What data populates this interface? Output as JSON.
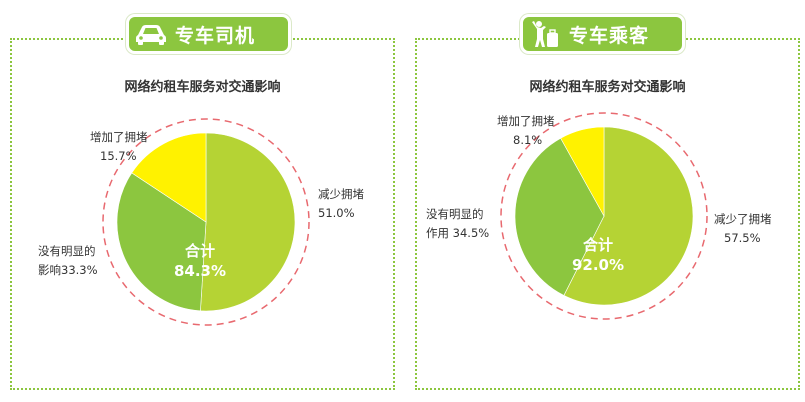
{
  "tabs": [
    {
      "label": "专车司机",
      "icon": "car-icon"
    },
    {
      "label": "专车乘客",
      "icon": "passenger-luggage-icon"
    }
  ],
  "colors": {
    "accent": "#8cc63f",
    "reduce": "#b5d334",
    "no_effect": "#8cc63f",
    "increase": "#fff200",
    "dashed_ring": "#e8696f"
  },
  "chart_data": [
    {
      "type": "pie",
      "title": "网络约租车服务对交通影响",
      "slices": [
        {
          "label": "减少拥堵",
          "value": 51.0,
          "text": "51.0%"
        },
        {
          "label": "没有明显的影响",
          "value": 33.3,
          "text": "33.3%"
        },
        {
          "label": "增加了拥堵",
          "value": 15.7,
          "text": "15.7%"
        }
      ],
      "center_label": "合计",
      "center_value": "84.3%",
      "annotation_labels": {
        "reduce": [
          "减少拥堵",
          "51.0%"
        ],
        "no_effect": [
          "没有明显的",
          "影响33.3%"
        ],
        "increase": [
          "增加了拥堵",
          "15.7%"
        ]
      }
    },
    {
      "type": "pie",
      "title": "网络约租车服务对交通影响",
      "slices": [
        {
          "label": "减少了拥堵",
          "value": 57.5,
          "text": "57.5%"
        },
        {
          "label": "没有明显的作用",
          "value": 34.5,
          "text": "34.5%"
        },
        {
          "label": "增加了拥堵",
          "value": 8.1,
          "text": "8.1%"
        }
      ],
      "center_label": "合计",
      "center_value": "92.0%",
      "annotation_labels": {
        "reduce": [
          "减少了拥堵",
          "57.5%"
        ],
        "no_effect": [
          "没有明显的",
          "作用 34.5%"
        ],
        "increase": [
          "增加了拥堵",
          "8.1%"
        ]
      }
    }
  ]
}
